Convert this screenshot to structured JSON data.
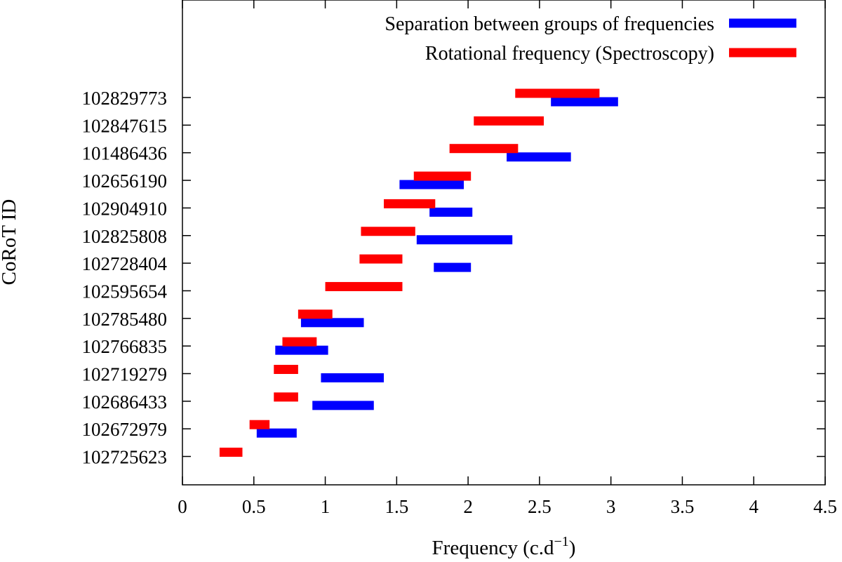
{
  "chart_data": {
    "type": "range-bar",
    "xlabel": "Frequency (c.d",
    "xlabel_sup": "−1",
    "xlabel_close": ")",
    "ylabel": "CoRoT ID",
    "xlim": [
      0,
      4.5
    ],
    "xticks": [
      "0",
      "0.5",
      "1",
      "1.5",
      "2",
      "2.5",
      "3",
      "3.5",
      "4",
      "4.5"
    ],
    "legend_position": "top-right",
    "categories": [
      "102829773",
      "102847615",
      "101486436",
      "102656190",
      "102904910",
      "102825808",
      "102728404",
      "102595654",
      "102785480",
      "102766835",
      "102719279",
      "102686433",
      "102672979",
      "102725623"
    ],
    "series": [
      {
        "name": "Separation between groups of frequencies",
        "color": "#0000ff",
        "ranges": [
          [
            2.58,
            3.05
          ],
          null,
          [
            2.27,
            2.72
          ],
          [
            1.52,
            1.97
          ],
          [
            1.73,
            2.03
          ],
          [
            1.64,
            2.31
          ],
          [
            1.76,
            2.02
          ],
          null,
          [
            0.83,
            1.27
          ],
          [
            0.65,
            1.02
          ],
          [
            0.97,
            1.41
          ],
          [
            0.91,
            1.34
          ],
          [
            0.52,
            0.8
          ],
          null
        ]
      },
      {
        "name": "Rotational frequency (Spectroscopy)",
        "color": "#ff0000",
        "ranges": [
          [
            2.33,
            2.92
          ],
          [
            2.04,
            2.53
          ],
          [
            1.87,
            2.35
          ],
          [
            1.62,
            2.02
          ],
          [
            1.41,
            1.77
          ],
          [
            1.25,
            1.63
          ],
          [
            1.24,
            1.54
          ],
          [
            1.0,
            1.54
          ],
          [
            0.81,
            1.05
          ],
          [
            0.7,
            0.94
          ],
          [
            0.64,
            0.81
          ],
          [
            0.64,
            0.81
          ],
          [
            0.47,
            0.61
          ],
          [
            0.26,
            0.42
          ]
        ]
      }
    ]
  }
}
